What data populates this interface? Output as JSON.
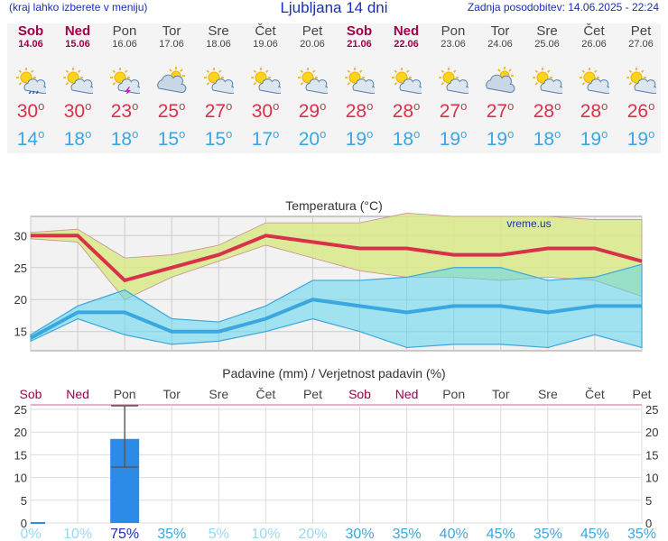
{
  "header": {
    "note": "(kraj lahko izberete v meniju)",
    "title": "Ljubljana 14 dni",
    "updated": "Zadnja posodobitev: 14.06.2025 - 22:24"
  },
  "days": [
    {
      "name": "Sob",
      "date": "14.06",
      "weekend": true,
      "icon": "sun-cloud-rain-icon",
      "tmax": "30",
      "tmin": "14"
    },
    {
      "name": "Ned",
      "date": "15.06",
      "weekend": true,
      "icon": "sun-cloud-icon",
      "tmax": "30",
      "tmin": "18"
    },
    {
      "name": "Pon",
      "date": "16.06",
      "weekend": false,
      "icon": "sun-cloud-storm-icon",
      "tmax": "23",
      "tmin": "18"
    },
    {
      "name": "Tor",
      "date": "17.06",
      "weekend": false,
      "icon": "cloud-sun-icon",
      "tmax": "25",
      "tmin": "15"
    },
    {
      "name": "Sre",
      "date": "18.06",
      "weekend": false,
      "icon": "sun-cloud-icon",
      "tmax": "27",
      "tmin": "15"
    },
    {
      "name": "Čet",
      "date": "19.06",
      "weekend": false,
      "icon": "sun-cloud-icon",
      "tmax": "30",
      "tmin": "17"
    },
    {
      "name": "Pet",
      "date": "20.06",
      "weekend": false,
      "icon": "sun-cloud-icon",
      "tmax": "29",
      "tmin": "20"
    },
    {
      "name": "Sob",
      "date": "21.06",
      "weekend": true,
      "icon": "sun-cloud-icon",
      "tmax": "28",
      "tmin": "19"
    },
    {
      "name": "Ned",
      "date": "22.06",
      "weekend": true,
      "icon": "sun-cloud-icon",
      "tmax": "28",
      "tmin": "18"
    },
    {
      "name": "Pon",
      "date": "23.06",
      "weekend": false,
      "icon": "sun-cloud-icon",
      "tmax": "27",
      "tmin": "19"
    },
    {
      "name": "Tor",
      "date": "24.06",
      "weekend": false,
      "icon": "cloud-sun-icon",
      "tmax": "27",
      "tmin": "19"
    },
    {
      "name": "Sre",
      "date": "25.06",
      "weekend": false,
      "icon": "sun-cloud-icon",
      "tmax": "28",
      "tmin": "18"
    },
    {
      "name": "Čet",
      "date": "26.06",
      "weekend": false,
      "icon": "sun-cloud-icon",
      "tmax": "28",
      "tmin": "19"
    },
    {
      "name": "Pet",
      "date": "27.06",
      "weekend": false,
      "icon": "sun-cloud-icon",
      "tmax": "26",
      "tmin": "19"
    }
  ],
  "colors": {
    "max": "#d8324a",
    "min": "#3aa7e0",
    "weekend": "#a0004a",
    "bar": "#2d8be8"
  },
  "chart_data": [
    {
      "type": "line",
      "title": "Temperatura (°C)",
      "watermark": "vreme.us",
      "ylim": [
        12,
        33
      ],
      "yticks": [
        15,
        20,
        25,
        30
      ],
      "max_line": [
        30,
        30,
        23,
        25,
        27,
        30,
        29,
        28,
        28,
        27,
        27,
        28,
        28,
        26
      ],
      "max_band_low": [
        29.5,
        29,
        20,
        23.5,
        26,
        28.5,
        26.5,
        24.5,
        23.5,
        23.5,
        23,
        23.5,
        23,
        20.5
      ],
      "max_band_high": [
        30.5,
        31,
        26.5,
        27,
        28.5,
        32,
        32,
        32,
        33.5,
        33,
        33,
        33,
        32.5,
        32.5
      ],
      "min_line": [
        14,
        18,
        18,
        15,
        15,
        17,
        20,
        19,
        18,
        19,
        19,
        18,
        19,
        19
      ],
      "min_band_low": [
        13.5,
        17,
        14.5,
        13,
        13.5,
        15,
        17,
        15,
        12.5,
        13,
        13,
        12.5,
        14.5,
        12.5
      ],
      "min_band_high": [
        14.5,
        19,
        21.5,
        17,
        16.5,
        19,
        23,
        23,
        23.5,
        25,
        25,
        23,
        23.5,
        25.5
      ]
    },
    {
      "type": "bar",
      "title": "Padavine (mm) / Verjetnost padavin (%)",
      "ylim": [
        0,
        26
      ],
      "yticks": [
        0,
        5,
        10,
        15,
        20,
        25
      ],
      "values": [
        0.2,
        0,
        18.5,
        0,
        0,
        0,
        0,
        0,
        0,
        0,
        0,
        0,
        0,
        0
      ],
      "error_low": [
        0,
        0,
        12.3,
        0,
        0,
        0,
        0,
        0,
        0,
        0,
        0,
        0,
        0,
        0
      ],
      "error_high": [
        0,
        0,
        25.8,
        0,
        0,
        0,
        0,
        0,
        0,
        0,
        0,
        0,
        0,
        0
      ],
      "probability": [
        "0%",
        "10%",
        "75%",
        "35%",
        "5%",
        "10%",
        "20%",
        "30%",
        "35%",
        "40%",
        "45%",
        "35%",
        "45%",
        "35%"
      ]
    }
  ]
}
